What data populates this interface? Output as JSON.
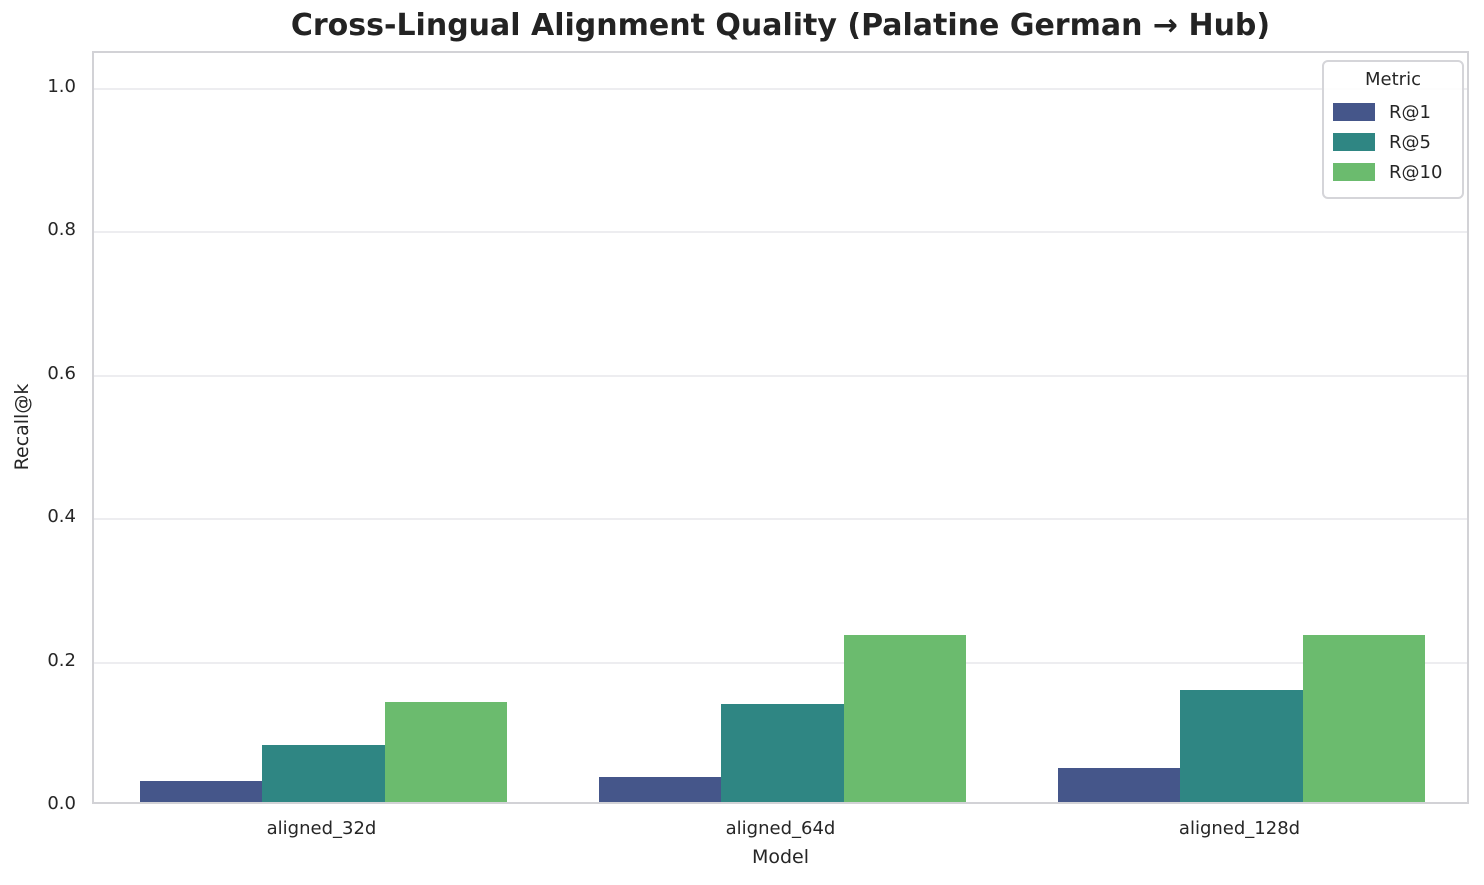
{
  "chart_data": {
    "type": "bar",
    "title": "Cross-Lingual Alignment Quality (Palatine German → Hub)",
    "xlabel": "Model",
    "ylabel": "Recall@k",
    "legend_title": "Metric",
    "legend_position": "upper right",
    "grid": true,
    "categories": [
      "aligned_32d",
      "aligned_64d",
      "aligned_128d"
    ],
    "series": [
      {
        "name": "R@1",
        "color": "#45568a",
        "values": [
          0.029,
          0.035,
          0.047
        ]
      },
      {
        "name": "R@5",
        "color": "#2f8683",
        "values": [
          0.08,
          0.136,
          0.156
        ]
      },
      {
        "name": "R@10",
        "color": "#6bbb6e",
        "values": [
          0.14,
          0.233,
          0.233
        ]
      }
    ],
    "ylim": [
      0,
      1.05
    ],
    "yticks": [
      0.0,
      0.2,
      0.4,
      0.6,
      0.8,
      1.0
    ],
    "bar_group_width": 0.8
  }
}
